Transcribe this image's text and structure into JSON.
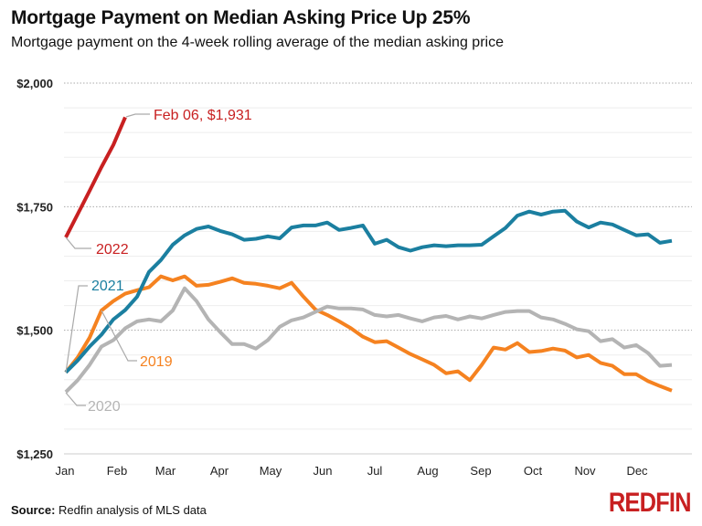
{
  "title": "Mortgage Payment on Median Asking Price Up 25%",
  "subtitle": "Mortgage payment on the 4-week rolling average of the median asking price",
  "source_label": "Source:",
  "source_text": " Redfin analysis of MLS data",
  "logo": "REDFIN",
  "chart_data": {
    "type": "line",
    "title": "Mortgage Payment on Median Asking Price Up 25%",
    "ylim": [
      1250,
      2000
    ],
    "yticks": [
      1250,
      1500,
      1750,
      2000
    ],
    "ytick_labels": [
      "$1,250",
      "$1,500",
      "$1,750",
      "$2,000"
    ],
    "minor_grid_step": 50,
    "x_unit": "week of year",
    "xtick_labels": [
      "Jan",
      "Feb",
      "Mar",
      "Apr",
      "May",
      "Jun",
      "Jul",
      "Aug",
      "Sep",
      "Oct",
      "Nov",
      "Dec"
    ],
    "grid": true,
    "annotation": "Feb 06, $1,931",
    "series": [
      {
        "name": "2019",
        "color": "#f58220",
        "values": [
          1415,
          1445,
          1485,
          1540,
          1559,
          1574,
          1581,
          1587,
          1609,
          1601,
          1609,
          1590,
          1592,
          1598,
          1605,
          1596,
          1594,
          1590,
          1585,
          1596,
          1568,
          1542,
          1531,
          1518,
          1504,
          1487,
          1476,
          1478,
          1465,
          1452,
          1441,
          1430,
          1413,
          1417,
          1399,
          1430,
          1465,
          1461,
          1474,
          1456,
          1458,
          1463,
          1459,
          1445,
          1450,
          1434,
          1428,
          1411,
          1411,
          1397,
          1387,
          1378
        ]
      },
      {
        "name": "2020",
        "color": "#b4b4b4",
        "values": [
          1375,
          1399,
          1430,
          1467,
          1480,
          1504,
          1518,
          1522,
          1518,
          1540,
          1585,
          1559,
          1522,
          1496,
          1472,
          1472,
          1463,
          1480,
          1507,
          1520,
          1526,
          1537,
          1548,
          1544,
          1544,
          1542,
          1531,
          1528,
          1531,
          1524,
          1518,
          1526,
          1529,
          1522,
          1528,
          1524,
          1531,
          1537,
          1539,
          1539,
          1526,
          1522,
          1513,
          1502,
          1498,
          1478,
          1482,
          1465,
          1470,
          1454,
          1428,
          1430
        ]
      },
      {
        "name": "2021",
        "color": "#1b7fa0",
        "values": [
          1415,
          1439,
          1467,
          1491,
          1522,
          1541,
          1568,
          1618,
          1642,
          1673,
          1692,
          1705,
          1710,
          1701,
          1694,
          1683,
          1685,
          1690,
          1686,
          1708,
          1712,
          1712,
          1718,
          1703,
          1707,
          1712,
          1675,
          1683,
          1668,
          1661,
          1668,
          1672,
          1670,
          1672,
          1672,
          1673,
          1690,
          1707,
          1732,
          1740,
          1734,
          1740,
          1742,
          1720,
          1708,
          1718,
          1714,
          1703,
          1692,
          1694,
          1677,
          1681
        ]
      },
      {
        "name": "2022",
        "color": "#c82021",
        "values": [
          1688,
          1735,
          1782,
          1830,
          1875,
          1931
        ]
      }
    ]
  }
}
